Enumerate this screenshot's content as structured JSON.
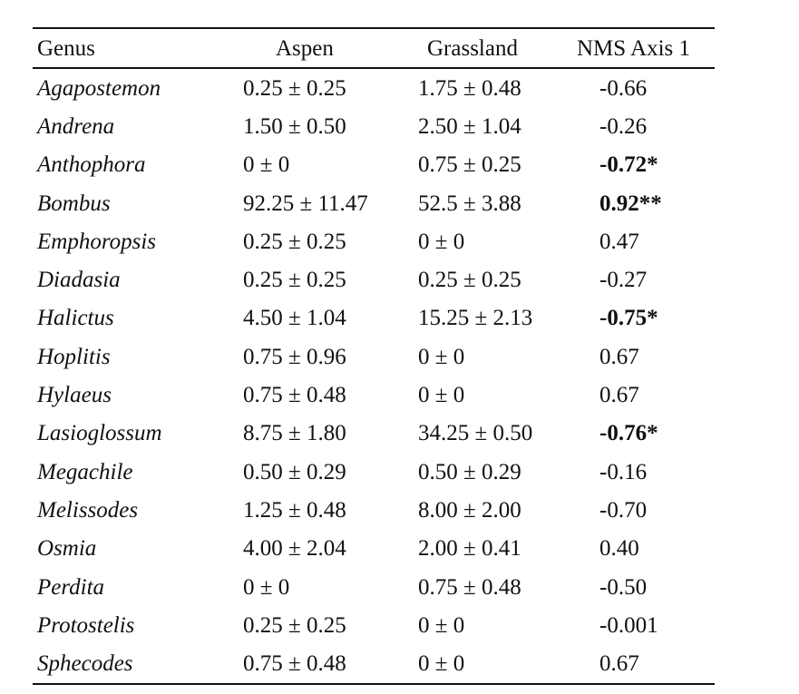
{
  "table": {
    "headers": {
      "genus": "Genus",
      "aspen": "Aspen",
      "grassland": "Grassland",
      "nms": "NMS Axis 1"
    },
    "rows": [
      {
        "genus": "Agapostemon",
        "aspen": "0.25 ± 0.25",
        "grassland": "1.75 ± 0.48",
        "nms": "-0.66",
        "bold": false
      },
      {
        "genus": "Andrena",
        "aspen": "1.50 ± 0.50",
        "grassland": "2.50 ± 1.04",
        "nms": "-0.26",
        "bold": false
      },
      {
        "genus": "Anthophora",
        "aspen": "0 ± 0",
        "grassland": "0.75 ± 0.25",
        "nms": "-0.72*",
        "bold": true
      },
      {
        "genus": "Bombus",
        "aspen": "92.25 ± 11.47",
        "grassland": "52.5 ± 3.88",
        "nms": " 0.92**",
        "bold": true
      },
      {
        "genus": "Emphoropsis",
        "aspen": "0.25 ± 0.25",
        "grassland": "0 ± 0",
        "nms": "0.47",
        "bold": false
      },
      {
        "genus": "Diadasia",
        "aspen": "0.25 ± 0.25",
        "grassland": "0.25 ± 0.25",
        "nms": "-0.27",
        "bold": false
      },
      {
        "genus": "Halictus",
        "aspen": "4.50 ± 1.04",
        "grassland": "15.25 ± 2.13",
        "nms": "-0.75*",
        "bold": true
      },
      {
        "genus": "Hoplitis",
        "aspen": "0.75 ± 0.96",
        "grassland": "0 ± 0",
        "nms": "0.67",
        "bold": false
      },
      {
        "genus": "Hylaeus",
        "aspen": "0.75 ± 0.48",
        "grassland": "0 ± 0",
        "nms": "0.67",
        "bold": false
      },
      {
        "genus": "Lasioglossum",
        "aspen": "8.75 ± 1.80",
        "grassland": "34.25 ± 0.50",
        "nms": "-0.76*",
        "bold": true
      },
      {
        "genus": "Megachile",
        "aspen": "0.50 ± 0.29",
        "grassland": "0.50 ± 0.29",
        "nms": "-0.16",
        "bold": false
      },
      {
        "genus": "Melissodes",
        "aspen": "1.25 ± 0.48",
        "grassland": "8.00 ± 2.00",
        "nms": "-0.70",
        "bold": false
      },
      {
        "genus": "Osmia",
        "aspen": "4.00 ± 2.04",
        "grassland": "2.00 ± 0.41",
        "nms": "0.40",
        "bold": false
      },
      {
        "genus": "Perdita",
        "aspen": "0 ± 0",
        "grassland": "0.75 ± 0.48",
        "nms": "-0.50",
        "bold": false
      },
      {
        "genus": "Protostelis",
        "aspen": "0.25 ± 0.25",
        "grassland": "0 ± 0",
        "nms": "-0.001",
        "bold": false
      },
      {
        "genus": "Sphecodes",
        "aspen": "0.75 ± 0.48",
        "grassland": "0 ± 0",
        "nms": "0.67",
        "bold": false
      }
    ]
  }
}
